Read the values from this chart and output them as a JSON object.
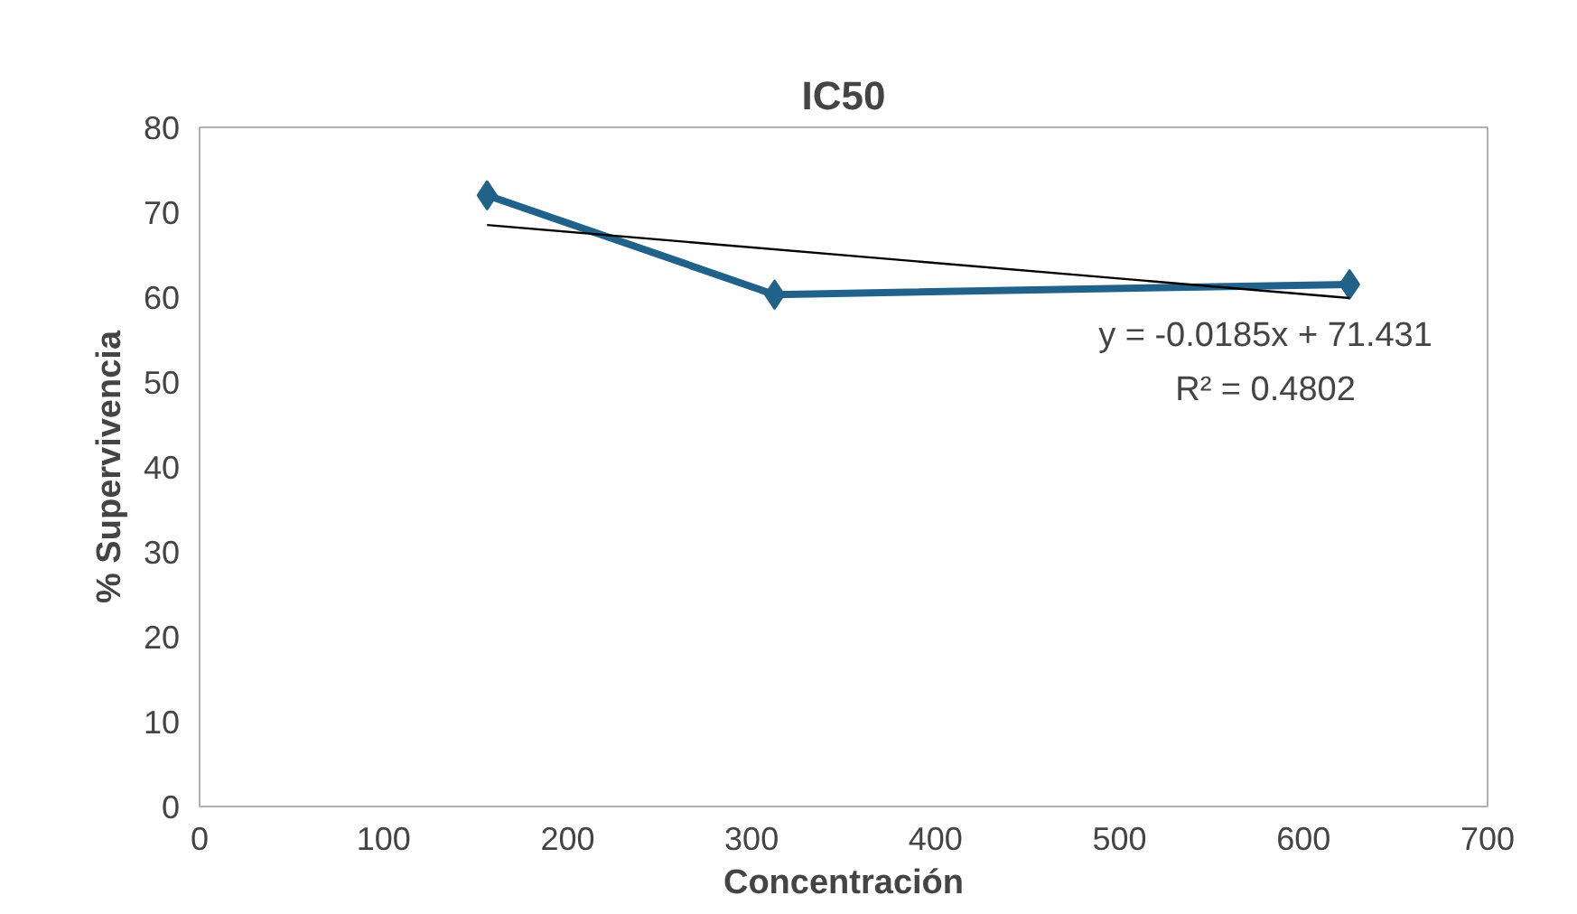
{
  "chart_data": {
    "type": "line",
    "title": "IC50",
    "xlabel": "Concentración",
    "ylabel": "% Supervivencia",
    "x": [
      156.25,
      312.5,
      625
    ],
    "series": [
      {
        "color": "#21628a",
        "values": [
          72,
          60.3,
          61.5
        ],
        "marker": "diamond"
      },
      {
        "type": "line",
        "color": "#000000",
        "x": [
          156.25,
          625
        ],
        "values": [
          68.5,
          59.9
        ],
        "marker": "none"
      }
    ],
    "xlim": [
      0,
      700
    ],
    "xticks": [
      0,
      100,
      200,
      300,
      400,
      500,
      600,
      700
    ],
    "ylim": [
      0,
      80
    ],
    "yticks": [
      0,
      10,
      20,
      30,
      40,
      50,
      60,
      70,
      80
    ],
    "grid": false,
    "annotations": [
      "y = -0.0185x + 71.431",
      "R² = 0.4802"
    ]
  }
}
